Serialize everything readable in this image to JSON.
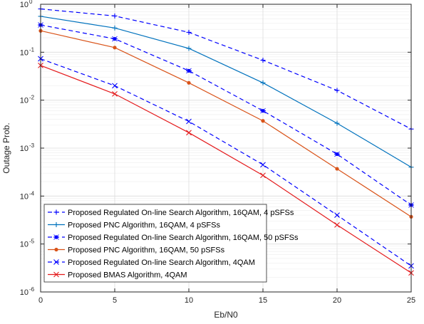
{
  "chart_data": {
    "type": "line",
    "title": "",
    "xlabel": "Eb/N0",
    "ylabel": "Outage Prob.",
    "xlim": [
      0,
      25
    ],
    "ylim": [
      1e-06,
      1
    ],
    "yscale": "log",
    "grid": true,
    "legend_position": "bottom-left",
    "x_ticks": [
      0,
      5,
      10,
      15,
      20,
      25
    ],
    "y_ticks": [
      {
        "value": 1e-06,
        "base": "10",
        "exp": "-6"
      },
      {
        "value": 1e-05,
        "base": "10",
        "exp": "-5"
      },
      {
        "value": 0.0001,
        "base": "10",
        "exp": "-4"
      },
      {
        "value": 0.001,
        "base": "10",
        "exp": "-3"
      },
      {
        "value": 0.01,
        "base": "10",
        "exp": "-2"
      },
      {
        "value": 0.1,
        "base": "10",
        "exp": "-1"
      },
      {
        "value": 1,
        "base": "10",
        "exp": "0"
      }
    ],
    "x": [
      0,
      5,
      10,
      15,
      20,
      25
    ],
    "series": [
      {
        "name": "Proposed Regulated On-line Search Algorithm, 16QAM, 4 pSFSs",
        "color": "#0000ff",
        "dash": "dashed",
        "marker": "plus",
        "values": [
          0.8,
          0.57,
          0.26,
          0.068,
          0.016,
          0.0025
        ]
      },
      {
        "name": "Proposed PNC Algorithm, 16QAM, 4 pSFSs",
        "color": "#0072bd",
        "dash": "solid",
        "marker": "plus",
        "values": [
          0.56,
          0.32,
          0.12,
          0.023,
          0.0033,
          0.0004
        ]
      },
      {
        "name": "Proposed Regulated On-line Search Algorithm, 16QAM, 50 pSFSs",
        "color": "#0000ff",
        "dash": "dashed",
        "marker": "star",
        "values": [
          0.37,
          0.19,
          0.041,
          0.006,
          0.00075,
          6.5e-05
        ]
      },
      {
        "name": "Proposed PNC Algorithm, 16QAM, 50 pSFSs",
        "color": "#d95319",
        "dash": "solid",
        "marker": "dot",
        "values": [
          0.28,
          0.125,
          0.023,
          0.0037,
          0.00037,
          3.7e-05
        ]
      },
      {
        "name": "Proposed Regulated On-line Search Algorithm, 4QAM",
        "color": "#0000ff",
        "dash": "dashed",
        "marker": "x",
        "values": [
          0.073,
          0.02,
          0.0036,
          0.00045,
          4e-05,
          3.5e-06
        ]
      },
      {
        "name": "Proposed BMAS Algorithm, 4QAM",
        "color": "#e41a1c",
        "dash": "solid",
        "marker": "x",
        "values": [
          0.053,
          0.0135,
          0.0021,
          0.00027,
          2.5e-05,
          2.5e-06
        ]
      }
    ]
  }
}
